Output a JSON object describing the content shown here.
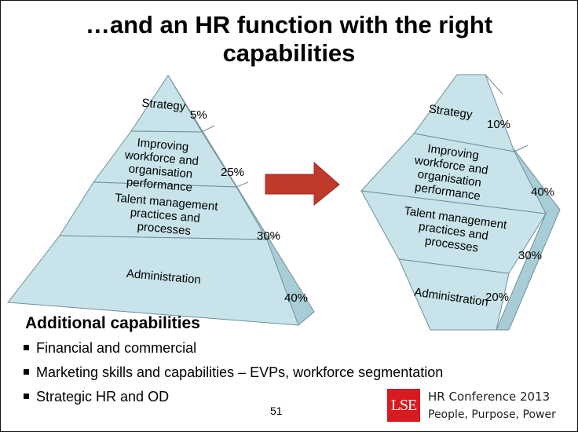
{
  "slide": {
    "title_line1": "…and an HR function with the right",
    "title_line2": "capabilities",
    "page_number": "51"
  },
  "left_pyramid": {
    "layers": [
      {
        "label": [
          "Strategy"
        ],
        "percent": "5%"
      },
      {
        "label": [
          "Improving",
          "workforce and",
          "organisation",
          "performance"
        ],
        "percent": "25%"
      },
      {
        "label": [
          "Talent management",
          "practices and",
          "processes"
        ],
        "percent": "30%"
      },
      {
        "label": [
          "Administration"
        ],
        "percent": "40%"
      }
    ]
  },
  "right_diamond": {
    "layers": [
      {
        "label": [
          "Strategy"
        ],
        "percent": "10%"
      },
      {
        "label": [
          "Improving",
          "workforce and",
          "organisation",
          "performance"
        ],
        "percent": "40%"
      },
      {
        "label": [
          "Talent management",
          "practices and",
          "processes"
        ],
        "percent": "30%"
      },
      {
        "label": [
          "Administration"
        ],
        "percent": "20%"
      }
    ]
  },
  "additional": {
    "heading": "Additional capabilities",
    "items": [
      "Financial and commercial",
      "Marketing skills and capabilities – EVPs, workforce segmentation",
      "Strategic HR and OD"
    ]
  },
  "branding": {
    "logo_text": "LSE",
    "line1": "HR Conference 2013",
    "line2": "People, Purpose, Power"
  },
  "colors": {
    "face": "#c8e4ea",
    "side": "#a9cdd6",
    "edge": "#6f8f98",
    "arrow": "#c0392b"
  }
}
